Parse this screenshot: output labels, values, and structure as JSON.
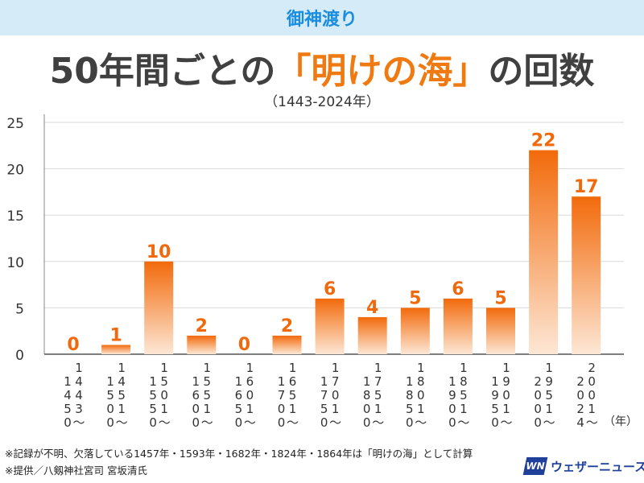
{
  "header": {
    "banner": "御神渡り",
    "title_pre": "50年間ごとの",
    "title_highlight": "「明けの海」",
    "title_post": "の回数",
    "subtitle": "（1443-2024年）"
  },
  "chart_data": {
    "type": "bar",
    "categories": [
      "1443〜1450",
      "1451〜1500",
      "1501〜1550",
      "1551〜1600",
      "1601〜1650",
      "1651〜1700",
      "1701〜1750",
      "1751〜1800",
      "1801〜1850",
      "1851〜1900",
      "1901〜1950",
      "1951〜2000",
      "2001〜2024"
    ],
    "tick_labels": [
      [
        "1",
        "4",
        "4",
        "3",
        "〜",
        "1",
        "4",
        "5",
        "0"
      ],
      [
        "1",
        "4",
        "5",
        "1",
        "〜",
        "1",
        "5",
        "0",
        "0"
      ],
      [
        "1",
        "5",
        "0",
        "1",
        "〜",
        "1",
        "5",
        "5",
        "0"
      ],
      [
        "1",
        "5",
        "5",
        "1",
        "〜",
        "1",
        "6",
        "0",
        "0"
      ],
      [
        "1",
        "6",
        "0",
        "1",
        "〜",
        "1",
        "6",
        "5",
        "0"
      ],
      [
        "1",
        "6",
        "5",
        "1",
        "〜",
        "1",
        "7",
        "0",
        "0"
      ],
      [
        "1",
        "7",
        "0",
        "1",
        "〜",
        "1",
        "7",
        "5",
        "0"
      ],
      [
        "1",
        "7",
        "5",
        "1",
        "〜",
        "1",
        "8",
        "0",
        "0"
      ],
      [
        "1",
        "8",
        "0",
        "1",
        "〜",
        "1",
        "8",
        "5",
        "0"
      ],
      [
        "1",
        "8",
        "5",
        "1",
        "〜",
        "1",
        "9",
        "0",
        "0"
      ],
      [
        "1",
        "9",
        "0",
        "1",
        "〜",
        "1",
        "9",
        "5",
        "0"
      ],
      [
        "1",
        "9",
        "5",
        "1",
        "〜",
        "2",
        "0",
        "0",
        "0"
      ],
      [
        "2",
        "0",
        "0",
        "1",
        "〜",
        "2",
        "0",
        "2",
        "4"
      ]
    ],
    "values": [
      0,
      1,
      10,
      2,
      0,
      2,
      6,
      4,
      5,
      6,
      5,
      22,
      17
    ],
    "ylim": [
      0,
      25
    ],
    "yticks": [
      0,
      5,
      10,
      15,
      20,
      25
    ],
    "x_unit": "（年）",
    "grid": true,
    "bar_color_top": "#f26a0b",
    "bar_color_bottom": "#fde7d5",
    "label_color": "#f06a0d"
  },
  "notes": {
    "line1": "※記録が不明、欠落している1457年・1593年・1682年・1824年・1864年は「明けの海」として計算",
    "line2": "※提供／八剱神社宮司 宮坂清氏"
  },
  "brand": {
    "mark": "WN",
    "name": "ウェザーニュース"
  }
}
